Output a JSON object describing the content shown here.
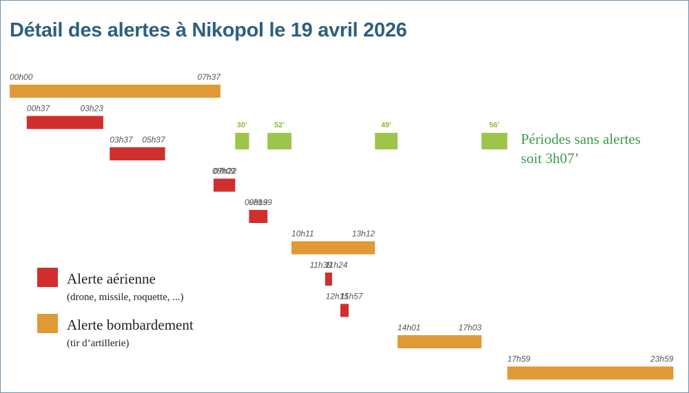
{
  "chart_data": {
    "type": "timeline",
    "title": "Détail des alertes à Nikopol le 19 avril 2026",
    "time_range": [
      "00h00",
      "24h00"
    ],
    "series": [
      {
        "name": "Alerte aérienne",
        "detail": "(drone, missile, roquette, ...)",
        "color": "#d12e2e"
      },
      {
        "name": "Alerte bombardement",
        "detail": "(tir d’artillerie)",
        "color": "#e09a35"
      }
    ],
    "alerts": [
      {
        "kind": "Alerte bombardement",
        "start": "00h00",
        "end": "07h37"
      },
      {
        "kind": "Alerte aérienne",
        "start": "00h37",
        "end": "03h23"
      },
      {
        "kind": "Alerte aérienne",
        "start": "03h37",
        "end": "05h37"
      },
      {
        "kind": "Alerte aérienne",
        "start": "07h22",
        "end": "08h09"
      },
      {
        "kind": "Alerte aérienne",
        "start": "08h39",
        "end": "09h19"
      },
      {
        "kind": "Alerte bombardement",
        "start": "10h11",
        "end": "13h12"
      },
      {
        "kind": "Alerte aérienne",
        "start": "11h24",
        "end": "11h39"
      },
      {
        "kind": "Alerte aérienne",
        "start": "11h57",
        "end": "12h15"
      },
      {
        "kind": "Alerte bombardement",
        "start": "14h01",
        "end": "17h03"
      },
      {
        "kind": "Alerte bombardement",
        "start": "17h59",
        "end": "23h59"
      }
    ],
    "gaps": {
      "color": "#9cc54a",
      "items": [
        {
          "label": "30’",
          "start": "08h09",
          "end": "08h39"
        },
        {
          "label": "52’",
          "start": "09h19",
          "end": "10h11"
        },
        {
          "label": "49’",
          "start": "13h12",
          "end": "14h01"
        },
        {
          "label": "56’",
          "start": "17h03",
          "end": "17h59"
        }
      ],
      "note_line1": "Périodes sans alertes",
      "note_line2": "soit 3h07’"
    }
  }
}
